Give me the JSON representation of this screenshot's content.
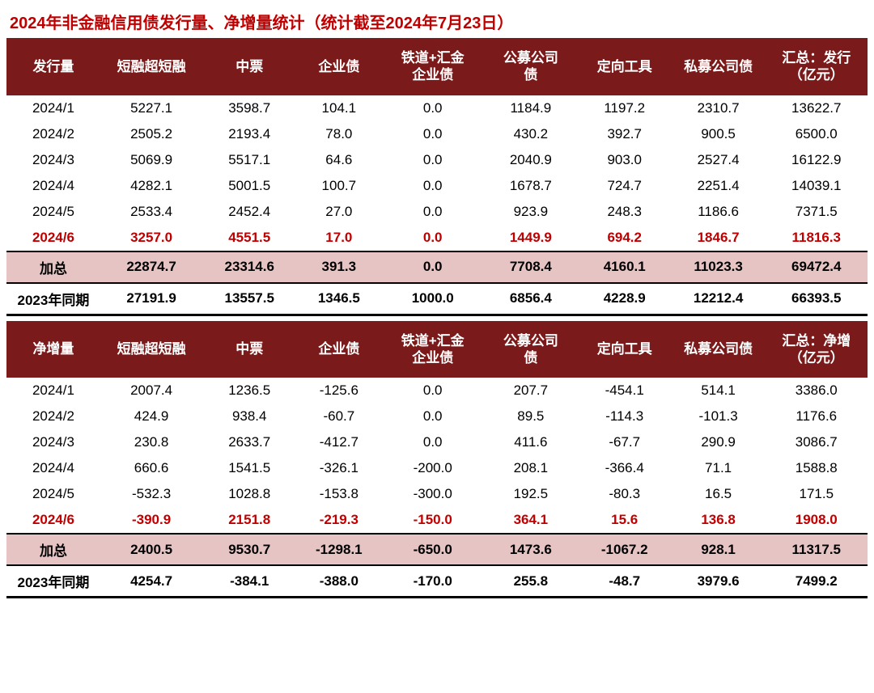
{
  "title": "2024年非金融信用债发行量、净增量统计（统计截至2024年7月23日）",
  "colors": {
    "title": "#c00000",
    "header_bg": "#7b1a1a",
    "header_text": "#ffffff",
    "highlight_text": "#c00000",
    "subtotal_bg": "#e6c4c4",
    "border": "#000000"
  },
  "fontsize": {
    "title": 20,
    "cell": 17
  },
  "columns_top": [
    "发行量",
    "短融超短融",
    "中票",
    "企业债",
    "铁道+汇金\n企业债",
    "公募公司\n债",
    "定向工具",
    "私募公司债",
    "汇总：发行\n（亿元）"
  ],
  "columns_bot": [
    "净增量",
    "短融超短融",
    "中票",
    "企业债",
    "铁道+汇金\n企业债",
    "公募公司\n债",
    "定向工具",
    "私募公司债",
    "汇总：净增\n（亿元）"
  ],
  "top": {
    "rows": [
      {
        "period": "2024/1",
        "cells": [
          "5227.1",
          "3598.7",
          "104.1",
          "0.0",
          "1184.9",
          "1197.2",
          "2310.7",
          "13622.7"
        ]
      },
      {
        "period": "2024/2",
        "cells": [
          "2505.2",
          "2193.4",
          "78.0",
          "0.0",
          "430.2",
          "392.7",
          "900.5",
          "6500.0"
        ]
      },
      {
        "period": "2024/3",
        "cells": [
          "5069.9",
          "5517.1",
          "64.6",
          "0.0",
          "2040.9",
          "903.0",
          "2527.4",
          "16122.9"
        ]
      },
      {
        "period": "2024/4",
        "cells": [
          "4282.1",
          "5001.5",
          "100.7",
          "0.0",
          "1678.7",
          "724.7",
          "2251.4",
          "14039.1"
        ]
      },
      {
        "period": "2024/5",
        "cells": [
          "2533.4",
          "2452.4",
          "27.0",
          "0.0",
          "923.9",
          "248.3",
          "1186.6",
          "7371.5"
        ]
      },
      {
        "period": "2024/6",
        "cells": [
          "3257.0",
          "4551.5",
          "17.0",
          "0.0",
          "1449.9",
          "694.2",
          "1846.7",
          "11816.3"
        ],
        "highlight": true
      }
    ],
    "subtotal": {
      "label": "加总",
      "cells": [
        "22874.7",
        "23314.6",
        "391.3",
        "0.0",
        "7708.4",
        "4160.1",
        "11023.3",
        "69472.4"
      ]
    },
    "compare": {
      "label": "2023年同期",
      "cells": [
        "27191.9",
        "13557.5",
        "1346.5",
        "1000.0",
        "6856.4",
        "4228.9",
        "12212.4",
        "66393.5"
      ]
    }
  },
  "bot": {
    "rows": [
      {
        "period": "2024/1",
        "cells": [
          "2007.4",
          "1236.5",
          "-125.6",
          "0.0",
          "207.7",
          "-454.1",
          "514.1",
          "3386.0"
        ]
      },
      {
        "period": "2024/2",
        "cells": [
          "424.9",
          "938.4",
          "-60.7",
          "0.0",
          "89.5",
          "-114.3",
          "-101.3",
          "1176.6"
        ]
      },
      {
        "period": "2024/3",
        "cells": [
          "230.8",
          "2633.7",
          "-412.7",
          "0.0",
          "411.6",
          "-67.7",
          "290.9",
          "3086.7"
        ]
      },
      {
        "period": "2024/4",
        "cells": [
          "660.6",
          "1541.5",
          "-326.1",
          "-200.0",
          "208.1",
          "-366.4",
          "71.1",
          "1588.8"
        ]
      },
      {
        "period": "2024/5",
        "cells": [
          "-532.3",
          "1028.8",
          "-153.8",
          "-300.0",
          "192.5",
          "-80.3",
          "16.5",
          "171.5"
        ]
      },
      {
        "period": "2024/6",
        "cells": [
          "-390.9",
          "2151.8",
          "-219.3",
          "-150.0",
          "364.1",
          "15.6",
          "136.8",
          "1908.0"
        ],
        "highlight": true
      }
    ],
    "subtotal": {
      "label": "加总",
      "cells": [
        "2400.5",
        "9530.7",
        "-1298.1",
        "-650.0",
        "1473.6",
        "-1067.2",
        "928.1",
        "11317.5"
      ]
    },
    "compare": {
      "label": "2023年同期",
      "cells": [
        "4254.7",
        "-384.1",
        "-388.0",
        "-170.0",
        "255.8",
        "-48.7",
        "3979.6",
        "7499.2"
      ]
    }
  }
}
